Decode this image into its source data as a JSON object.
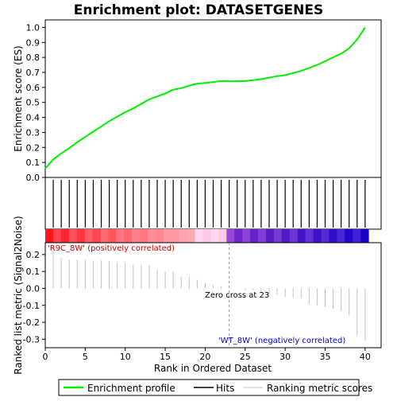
{
  "chart_data": {
    "type": "line",
    "title": "Enrichment plot: DATASETGENES",
    "xlabel": "Rank in Ordered Dataset",
    "top_ylabel": "Enrichment score (ES)",
    "bottom_ylabel": "Ranked list metric (Signal2Noise)",
    "xlim": [
      0,
      42
    ],
    "top_ylim": [
      0.0,
      1.05
    ],
    "bottom_ylim": [
      -0.35,
      0.27
    ],
    "x_ticks": [
      0,
      5,
      10,
      15,
      20,
      25,
      30,
      35,
      40
    ],
    "top_y_ticks": [
      "0.0",
      "0.1",
      "0.2",
      "0.3",
      "0.4",
      "0.5",
      "0.6",
      "0.7",
      "0.8",
      "0.9",
      "1.0"
    ],
    "bottom_y_ticks": [
      "-0.3",
      "-0.2",
      "-0.1",
      "0.0",
      "0.1",
      "0.2"
    ],
    "enrichment_profile": {
      "name": "Enrichment profile",
      "color": "#00ee00",
      "x": [
        0,
        1,
        2,
        3,
        4,
        5,
        6,
        7,
        8,
        9,
        10,
        11,
        12,
        13,
        14,
        15,
        16,
        17,
        18,
        19,
        20,
        21,
        22,
        23,
        24,
        25,
        26,
        27,
        28,
        29,
        30,
        31,
        32,
        33,
        34,
        35,
        36,
        37,
        38,
        39,
        40
      ],
      "y": [
        0.06,
        0.12,
        0.16,
        0.195,
        0.235,
        0.27,
        0.305,
        0.34,
        0.375,
        0.405,
        0.435,
        0.46,
        0.49,
        0.52,
        0.54,
        0.56,
        0.585,
        0.595,
        0.612,
        0.625,
        0.63,
        0.636,
        0.642,
        0.641,
        0.641,
        0.642,
        0.648,
        0.655,
        0.665,
        0.675,
        0.682,
        0.695,
        0.71,
        0.73,
        0.75,
        0.775,
        0.8,
        0.825,
        0.86,
        0.92,
        1.0
      ]
    },
    "hits": {
      "name": "Hits",
      "x": [
        1,
        2,
        3,
        4,
        5,
        6,
        7,
        8,
        9,
        10,
        11,
        12,
        13,
        14,
        15,
        16,
        17,
        18,
        19,
        20,
        21,
        22,
        23,
        24,
        25,
        26,
        27,
        28,
        29,
        30,
        31,
        32,
        33,
        34,
        35,
        36,
        37,
        38,
        39,
        40
      ]
    },
    "ranking_metric": {
      "name": "Ranking metric scores",
      "x": [
        1,
        2,
        3,
        4,
        5,
        6,
        7,
        8,
        9,
        10,
        11,
        12,
        13,
        14,
        15,
        16,
        17,
        18,
        19,
        20,
        21,
        22,
        23,
        24,
        25,
        26,
        27,
        28,
        29,
        30,
        31,
        32,
        33,
        34,
        35,
        36,
        37,
        38,
        39,
        40
      ],
      "y": [
        0.25,
        0.18,
        0.17,
        0.17,
        0.17,
        0.165,
        0.165,
        0.16,
        0.15,
        0.15,
        0.14,
        0.14,
        0.14,
        0.11,
        0.1,
        0.1,
        0.07,
        0.07,
        0.05,
        0.03,
        0.02,
        0.01,
        0.0,
        0.0,
        -0.01,
        -0.01,
        -0.02,
        -0.03,
        -0.04,
        -0.05,
        -0.05,
        -0.06,
        -0.09,
        -0.1,
        -0.11,
        -0.12,
        -0.13,
        -0.16,
        -0.28,
        -0.31
      ]
    },
    "zero_cross": 23,
    "annotations": {
      "positive": "'R9C_8W' (positively correlated)",
      "negative": "'WT_8W' (negatively correlated)",
      "zero_cross": "Zero cross at 23"
    },
    "legend": {
      "placement": "bottom",
      "items": [
        {
          "label": "Enrichment profile",
          "color": "#00ee00"
        },
        {
          "label": "Hits",
          "color": "#000000"
        },
        {
          "label": "Ranking metric scores",
          "color": "#c0c0c0"
        }
      ]
    }
  }
}
